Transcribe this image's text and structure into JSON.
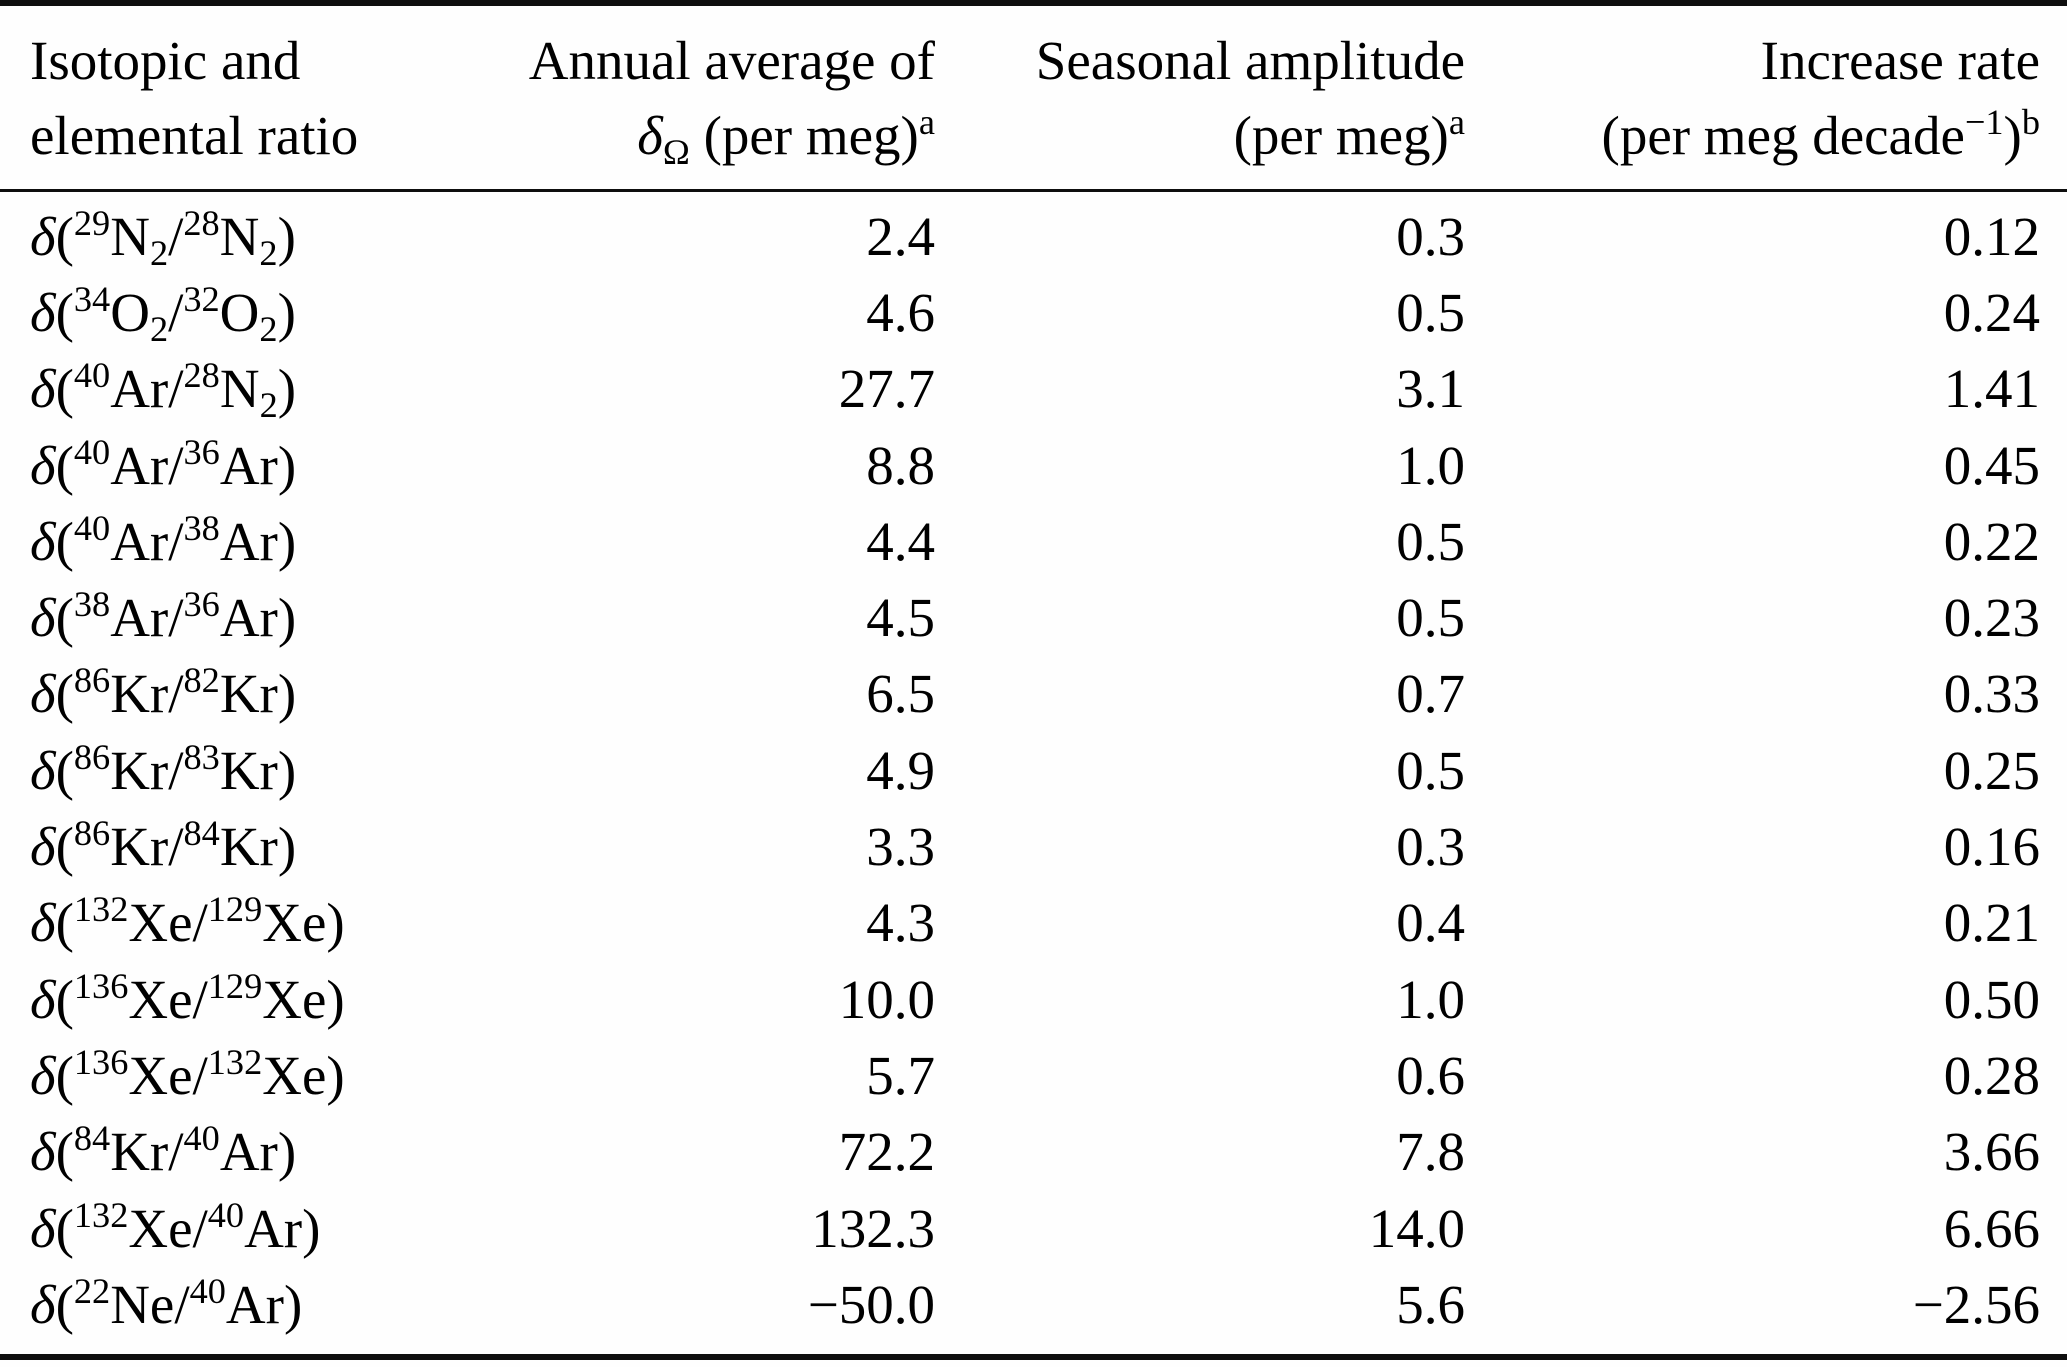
{
  "table": {
    "symbols": {
      "delta": "δ",
      "open": "(",
      "slash": "/",
      "close": ")"
    },
    "header": {
      "col1": {
        "line1": "Isotopic and",
        "line2": "elemental ratio"
      },
      "col2": {
        "line1": "Annual average of",
        "delta": "δ",
        "delta_sub": "Ω",
        "unit": " (per meg)",
        "footnote": "a"
      },
      "col3": {
        "line1": "Seasonal amplitude",
        "unit": "(per meg)",
        "footnote": "a"
      },
      "col4": {
        "line1": "Increase rate",
        "unit_pre": "(per meg decade",
        "exponent": "−1",
        "unit_close": ")",
        "footnote": "b"
      }
    },
    "rows": [
      {
        "numerator": {
          "mass": "29",
          "symbol": "N",
          "sub": "2"
        },
        "denominator": {
          "mass": "28",
          "symbol": "N",
          "sub": "2"
        },
        "annual": "2.4",
        "seasonal": "0.3",
        "rate": "0.12"
      },
      {
        "numerator": {
          "mass": "34",
          "symbol": "O",
          "sub": "2"
        },
        "denominator": {
          "mass": "32",
          "symbol": "O",
          "sub": "2"
        },
        "annual": "4.6",
        "seasonal": "0.5",
        "rate": "0.24"
      },
      {
        "numerator": {
          "mass": "40",
          "symbol": "Ar",
          "sub": ""
        },
        "denominator": {
          "mass": "28",
          "symbol": "N",
          "sub": "2"
        },
        "annual": "27.7",
        "seasonal": "3.1",
        "rate": "1.41"
      },
      {
        "numerator": {
          "mass": "40",
          "symbol": "Ar",
          "sub": ""
        },
        "denominator": {
          "mass": "36",
          "symbol": "Ar",
          "sub": ""
        },
        "annual": "8.8",
        "seasonal": "1.0",
        "rate": "0.45"
      },
      {
        "numerator": {
          "mass": "40",
          "symbol": "Ar",
          "sub": ""
        },
        "denominator": {
          "mass": "38",
          "symbol": "Ar",
          "sub": ""
        },
        "annual": "4.4",
        "seasonal": "0.5",
        "rate": "0.22"
      },
      {
        "numerator": {
          "mass": "38",
          "symbol": "Ar",
          "sub": ""
        },
        "denominator": {
          "mass": "36",
          "symbol": "Ar",
          "sub": ""
        },
        "annual": "4.5",
        "seasonal": "0.5",
        "rate": "0.23"
      },
      {
        "numerator": {
          "mass": "86",
          "symbol": "Kr",
          "sub": ""
        },
        "denominator": {
          "mass": "82",
          "symbol": "Kr",
          "sub": ""
        },
        "annual": "6.5",
        "seasonal": "0.7",
        "rate": "0.33"
      },
      {
        "numerator": {
          "mass": "86",
          "symbol": "Kr",
          "sub": ""
        },
        "denominator": {
          "mass": "83",
          "symbol": "Kr",
          "sub": ""
        },
        "annual": "4.9",
        "seasonal": "0.5",
        "rate": "0.25"
      },
      {
        "numerator": {
          "mass": "86",
          "symbol": "Kr",
          "sub": ""
        },
        "denominator": {
          "mass": "84",
          "symbol": "Kr",
          "sub": ""
        },
        "annual": "3.3",
        "seasonal": "0.3",
        "rate": "0.16"
      },
      {
        "numerator": {
          "mass": "132",
          "symbol": "Xe",
          "sub": ""
        },
        "denominator": {
          "mass": "129",
          "symbol": "Xe",
          "sub": ""
        },
        "annual": "4.3",
        "seasonal": "0.4",
        "rate": "0.21"
      },
      {
        "numerator": {
          "mass": "136",
          "symbol": "Xe",
          "sub": ""
        },
        "denominator": {
          "mass": "129",
          "symbol": "Xe",
          "sub": ""
        },
        "annual": "10.0",
        "seasonal": "1.0",
        "rate": "0.50"
      },
      {
        "numerator": {
          "mass": "136",
          "symbol": "Xe",
          "sub": ""
        },
        "denominator": {
          "mass": "132",
          "symbol": "Xe",
          "sub": ""
        },
        "annual": "5.7",
        "seasonal": "0.6",
        "rate": "0.28"
      },
      {
        "numerator": {
          "mass": "84",
          "symbol": "Kr",
          "sub": ""
        },
        "denominator": {
          "mass": "40",
          "symbol": "Ar",
          "sub": ""
        },
        "annual": "72.2",
        "seasonal": "7.8",
        "rate": "3.66"
      },
      {
        "numerator": {
          "mass": "132",
          "symbol": "Xe",
          "sub": ""
        },
        "denominator": {
          "mass": "40",
          "symbol": "Ar",
          "sub": ""
        },
        "annual": "132.3",
        "seasonal": "14.0",
        "rate": "6.66"
      },
      {
        "numerator": {
          "mass": "22",
          "symbol": "Ne",
          "sub": ""
        },
        "denominator": {
          "mass": "40",
          "symbol": "Ar",
          "sub": ""
        },
        "annual": "−50.0",
        "seasonal": "5.6",
        "rate": "−2.56"
      }
    ]
  }
}
